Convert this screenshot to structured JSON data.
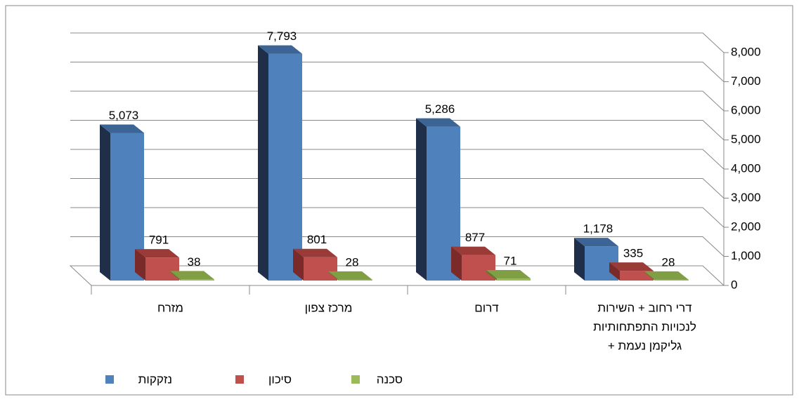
{
  "chart_data": {
    "type": "bar3d",
    "categories": [
      "מזרח",
      "מרכז צפון",
      "דרום",
      [
        "דרי רחוב + השירות",
        "לנכויות התפתחותיות",
        "+ גליקמן נעמת"
      ]
    ],
    "series": [
      {
        "name": "נזקקות",
        "color": "#4f81bd",
        "side": "#1f2f4a",
        "top": "#3c6596",
        "values": [
          5073,
          7793,
          5286,
          1178
        ],
        "value_labels": [
          "5,073",
          "7,793",
          "5,286",
          "1,178"
        ]
      },
      {
        "name": "סיכון",
        "color": "#c0504d",
        "side": "#7a2a28",
        "top": "#9b3b38",
        "values": [
          791,
          801,
          877,
          335
        ],
        "value_labels": [
          "791",
          "801",
          "877",
          "335"
        ]
      },
      {
        "name": "סכנה",
        "color": "#9bbb59",
        "side": "#5f7a2e",
        "top": "#809e44",
        "values": [
          38,
          28,
          71,
          28
        ],
        "value_labels": [
          "38",
          "28",
          "71",
          "28"
        ]
      }
    ],
    "ylim": [
      0,
      8000
    ],
    "yticks": [
      0,
      {
        "value": 1000,
        "label": "1,000"
      },
      {
        "value": 2000,
        "label": "2,000"
      },
      {
        "value": 3000,
        "label": "3,000"
      },
      {
        "value": 4000,
        "label": "4,000"
      },
      {
        "value": 5000,
        "label": "5,000"
      },
      {
        "value": 6000,
        "label": "6,000"
      },
      {
        "value": 7000,
        "label": "7,000"
      },
      {
        "value": 8000,
        "label": "8,000"
      }
    ],
    "grid": true
  }
}
